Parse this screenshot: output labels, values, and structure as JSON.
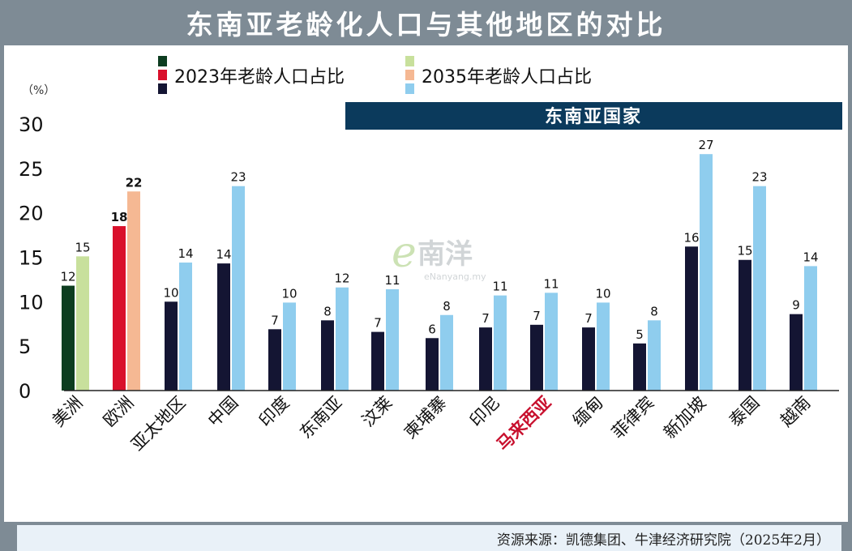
{
  "title": "东南亚老龄化人口与其他地区的对比",
  "source": "资源来源：凯德集团、牛津经济研究院（2025年2月）",
  "watermark": {
    "main": "南洋",
    "sub": "eNanyang.my"
  },
  "banner_label": "东南亚国家",
  "chart_data": {
    "type": "bar",
    "unit_label": "（%）",
    "ylim": [
      0,
      30
    ],
    "yticks": [
      0,
      5,
      10,
      15,
      20,
      25,
      30
    ],
    "grid": false,
    "legend_position": "top",
    "categories": [
      "美洲",
      "欧洲",
      "亚太地区",
      "中国",
      "印度",
      "东南亚",
      "汶莱",
      "柬埔寨",
      "印尼",
      "马来西亚",
      "缅甸",
      "菲律宾",
      "新加坡",
      "泰国",
      "越南"
    ],
    "series": [
      {
        "name": "2023年老龄人口占比",
        "values": [
          12,
          18,
          10,
          14,
          7,
          8,
          7,
          6,
          7,
          7,
          7,
          5,
          16,
          15,
          9
        ]
      },
      {
        "name": "2035年老龄人口占比",
        "values": [
          15,
          22,
          14,
          23,
          10,
          12,
          11,
          8,
          11,
          11,
          10,
          8,
          27,
          23,
          14
        ]
      }
    ],
    "bar_values_exact": {
      "2023": [
        11.8,
        18.5,
        10.0,
        14.3,
        6.9,
        7.9,
        6.6,
        5.9,
        7.1,
        7.4,
        7.1,
        5.3,
        16.2,
        14.7,
        8.6
      ],
      "2035": [
        15.1,
        22.4,
        14.4,
        23.0,
        9.9,
        11.6,
        11.4,
        8.5,
        10.7,
        11.0,
        9.9,
        7.9,
        26.6,
        23.0,
        14.0
      ]
    },
    "legend_swatches": {
      "2023": [
        "#0d3d20",
        "#d9102b",
        "#141533"
      ],
      "2035": [
        "#c8e09c",
        "#f5b893",
        "#8fcdee"
      ]
    },
    "bar_colors": {
      "2023": [
        "#0d3d20",
        "#d9102b",
        "#141533",
        "#141533",
        "#141533",
        "#141533",
        "#141533",
        "#141533",
        "#141533",
        "#141533",
        "#141533",
        "#141533",
        "#141533",
        "#141533",
        "#141533"
      ],
      "2035": [
        "#c8e09c",
        "#f5b893",
        "#8fcdee",
        "#8fcdee",
        "#8fcdee",
        "#8fcdee",
        "#8fcdee",
        "#8fcdee",
        "#8fcdee",
        "#8fcdee",
        "#8fcdee",
        "#8fcdee",
        "#8fcdee",
        "#8fcdee",
        "#8fcdee"
      ]
    },
    "bold_labels": [
      1
    ],
    "highlight_category": "马来西亚",
    "highlight_color": "#c8102e",
    "banner_color": "#0b3a5c"
  }
}
